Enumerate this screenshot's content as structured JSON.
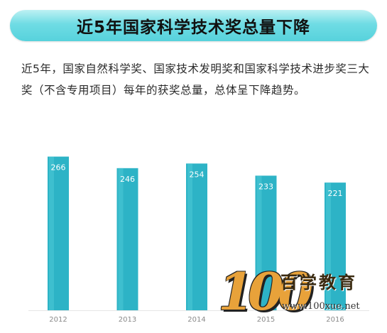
{
  "header": {
    "title": "近5年国家科学技术奖总量下降"
  },
  "intro": {
    "text": "近5年，国家自然科学奖、国家技术发明奖和国家科学技术进步奖三大奖（不含专用项目）每年的获奖总量，总体呈下降趋势。"
  },
  "chart_data": {
    "type": "bar",
    "title": "",
    "xlabel": "",
    "ylabel": "",
    "categories": [
      "2012",
      "2013",
      "2014",
      "2015",
      "2016"
    ],
    "values": [
      266,
      246,
      254,
      233,
      221
    ],
    "data_labels": [
      "266",
      "246",
      "254",
      "233",
      "221"
    ],
    "ylim": [
      0,
      300
    ],
    "grid": false,
    "bar_color": "#2db3c6",
    "bar_highlight": "#49c6d6"
  },
  "watermark": {
    "numeral": "100",
    "brand": "百学教育",
    "url": "www.100xue.net"
  }
}
